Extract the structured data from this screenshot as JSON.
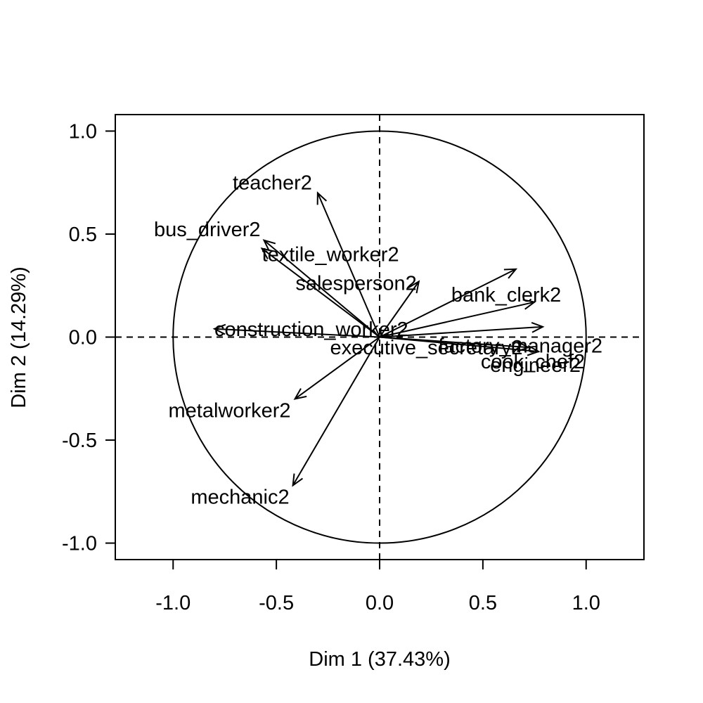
{
  "chart_data": {
    "type": "scatter",
    "subtype": "pca-correlation-circle",
    "xlabel": "Dim 1 (37.43%)",
    "ylabel": "Dim 2 (14.29%)",
    "xlim": [
      -1.28,
      1.28
    ],
    "ylim": [
      -1.08,
      1.08
    ],
    "xticks": [
      -1.0,
      -0.5,
      0.0,
      0.5,
      1.0
    ],
    "xtick_labels": [
      "-1.0",
      "-0.5",
      "0.0",
      "0.5",
      "1.0"
    ],
    "yticks": [
      -1.0,
      -0.5,
      0.0,
      0.5,
      1.0
    ],
    "ytick_labels": [
      "-1.0",
      "-0.5",
      "0.0",
      "0.5",
      "1.0"
    ],
    "grid": false,
    "unit_circle": true,
    "reference_lines": "dashed at x=0 and y=0",
    "variables": [
      {
        "name": "teacher2",
        "x": -0.3,
        "y": 0.7
      },
      {
        "name": "bus_driver2",
        "x": -0.56,
        "y": 0.47
      },
      {
        "name": "textile_worker2",
        "x": -0.57,
        "y": 0.43
      },
      {
        "name": "salesperson2",
        "x": 0.19,
        "y": 0.27
      },
      {
        "name": "bank_clerk2",
        "x": 0.66,
        "y": 0.33
      },
      {
        "name": "factory_manager2",
        "x": 0.75,
        "y": 0.17
      },
      {
        "name": "engineer2",
        "x": 0.79,
        "y": 0.05
      },
      {
        "name": "construction_worker2",
        "x": -0.8,
        "y": 0.04
      },
      {
        "name": "executive_secretary2",
        "x": 0.72,
        "y": -0.05
      },
      {
        "name": "cook_chef2",
        "x": 0.77,
        "y": -0.07
      },
      {
        "name": "metalworker2",
        "x": -0.41,
        "y": -0.3
      },
      {
        "name": "mechanic2",
        "x": -0.42,
        "y": -0.72
      }
    ]
  }
}
